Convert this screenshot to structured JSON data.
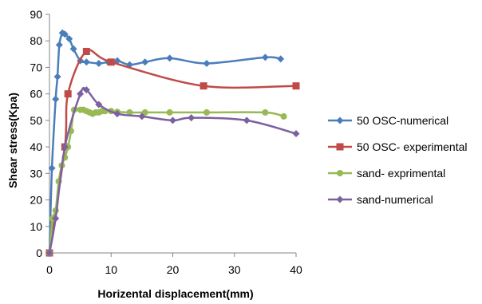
{
  "chart_data": {
    "type": "line",
    "title": "",
    "xlabel": "Horizental displacement(mm)",
    "ylabel": "Shear stress(Kpa)",
    "xlim": [
      0,
      40
    ],
    "ylim": [
      0,
      90
    ],
    "xticks": [
      0,
      10,
      20,
      30,
      40
    ],
    "yticks": [
      0,
      10,
      20,
      30,
      40,
      50,
      60,
      70,
      80,
      90
    ],
    "grid": false,
    "legend_position": "right",
    "smooth": true,
    "series": [
      {
        "name": "50 OSC-numerical",
        "color": "#4a7ebb",
        "marker": "diamond",
        "points": [
          [
            0,
            0
          ],
          [
            0.4,
            32
          ],
          [
            1,
            58
          ],
          [
            1.3,
            66.5
          ],
          [
            1.6,
            78.5
          ],
          [
            2.1,
            83
          ],
          [
            2.5,
            82.5
          ],
          [
            3.2,
            80.8
          ],
          [
            3.9,
            77
          ],
          [
            5,
            72.5
          ],
          [
            6,
            72
          ],
          [
            8,
            71.5
          ],
          [
            9.5,
            72
          ],
          [
            11,
            72.5
          ],
          [
            13,
            71
          ],
          [
            15.5,
            72
          ],
          [
            19.5,
            73.5
          ],
          [
            25.5,
            71.5
          ],
          [
            35,
            73.8
          ],
          [
            37.5,
            73.2
          ]
        ]
      },
      {
        "name": "50 OSC- experimental",
        "color": "#be4b48",
        "marker": "square",
        "points": [
          [
            0,
            0
          ],
          [
            2.5,
            40
          ],
          [
            3,
            60
          ],
          [
            6,
            76
          ],
          [
            10,
            72
          ],
          [
            25,
            63
          ],
          [
            40,
            63
          ]
        ]
      },
      {
        "name": "sand- exprimental",
        "color": "#98b954",
        "marker": "circle",
        "points": [
          [
            0,
            0
          ],
          [
            0.5,
            13
          ],
          [
            1,
            16
          ],
          [
            1.5,
            27
          ],
          [
            2,
            33
          ],
          [
            2.5,
            36
          ],
          [
            3,
            40
          ],
          [
            3.5,
            46
          ],
          [
            4,
            54
          ],
          [
            5,
            54
          ],
          [
            5.5,
            54
          ],
          [
            6,
            53.5
          ],
          [
            6.5,
            53
          ],
          [
            7,
            52.5
          ],
          [
            7.5,
            53
          ],
          [
            8,
            53
          ],
          [
            8.5,
            53.5
          ],
          [
            9,
            53.5
          ],
          [
            10,
            53.5
          ],
          [
            11,
            53.2
          ],
          [
            13,
            53
          ],
          [
            15.5,
            53
          ],
          [
            19.5,
            53
          ],
          [
            25.5,
            53
          ],
          [
            35,
            53
          ],
          [
            38,
            51.5
          ]
        ]
      },
      {
        "name": "sand-numerical",
        "color": "#7d60a0",
        "marker": "diamond",
        "points": [
          [
            0,
            0
          ],
          [
            1,
            13
          ],
          [
            2.5,
            40
          ],
          [
            5,
            60
          ],
          [
            6,
            61.5
          ],
          [
            8,
            56
          ],
          [
            11,
            52.5
          ],
          [
            15,
            51.5
          ],
          [
            20,
            50
          ],
          [
            23,
            51
          ],
          [
            32,
            50
          ],
          [
            40,
            45
          ]
        ]
      }
    ]
  }
}
